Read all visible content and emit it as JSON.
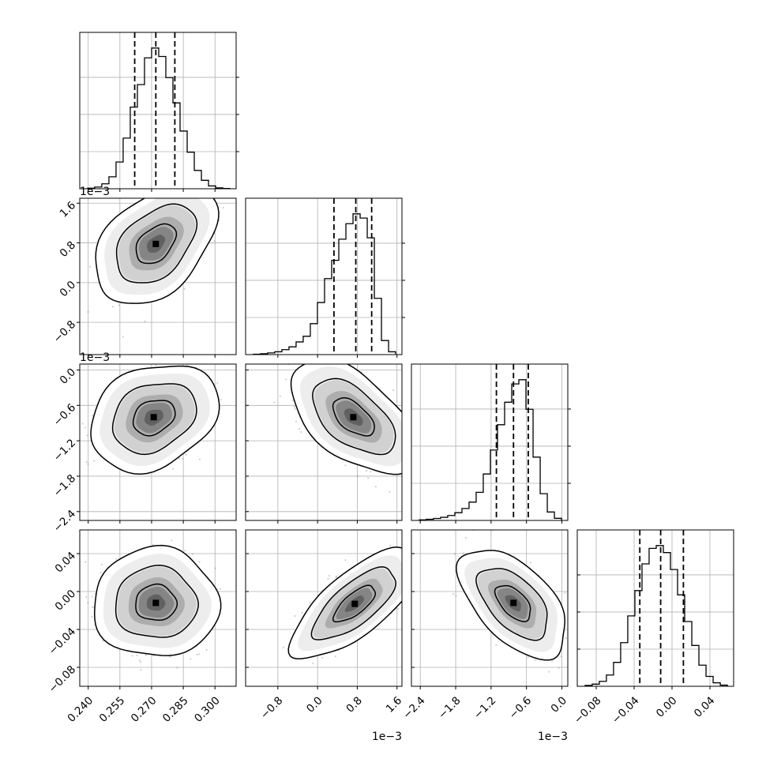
{
  "chart_data": {
    "type": "corner",
    "grid": true,
    "n_params": 4,
    "params": [
      {
        "range": [
          0.236,
          0.31
        ],
        "ticks": [
          0.24,
          0.255,
          0.27,
          0.285,
          0.3
        ],
        "tick_labels": [
          "0.240",
          "0.255",
          "0.270",
          "0.285",
          "0.300"
        ],
        "offset_label": "",
        "quantiles": [
          0.262,
          0.272,
          0.281
        ],
        "hist": [
          0.004,
          0.012,
          0.035,
          0.085,
          0.19,
          0.36,
          0.58,
          0.74,
          0.93,
          1.0,
          0.94,
          0.79,
          0.61,
          0.41,
          0.26,
          0.13,
          0.06,
          0.02,
          0.006,
          0.002
        ]
      },
      {
        "range": [
          -1.45,
          1.7
        ],
        "ticks": [
          -0.8,
          0.0,
          0.8,
          1.6
        ],
        "tick_labels": [
          "−0.8",
          "0.0",
          "0.8",
          "1.6"
        ],
        "offset_label": "1e−3",
        "quantiles": [
          0.33,
          0.77,
          1.09
        ],
        "hist": [
          0.003,
          0.006,
          0.012,
          0.02,
          0.035,
          0.055,
          0.09,
          0.13,
          0.22,
          0.37,
          0.54,
          0.67,
          0.82,
          0.93,
          1.0,
          0.97,
          0.83,
          0.4,
          0.1,
          0.02
        ]
      },
      {
        "range": [
          -2.55,
          0.1
        ],
        "ticks": [
          -2.4,
          -1.8,
          -1.2,
          -0.6,
          0.0
        ],
        "tick_labels": [
          "−2.4",
          "−1.8",
          "−1.2",
          "−0.6",
          "0.0"
        ],
        "offset_label": "1e−3",
        "quantiles": [
          -1.11,
          -0.82,
          -0.57
        ],
        "hist": [
          0.004,
          0.008,
          0.014,
          0.022,
          0.035,
          0.055,
          0.085,
          0.13,
          0.2,
          0.33,
          0.5,
          0.68,
          0.84,
          0.97,
          1.0,
          0.79,
          0.45,
          0.19,
          0.06,
          0.015
        ]
      },
      {
        "range": [
          -0.1,
          0.065
        ],
        "ticks": [
          -0.08,
          -0.04,
          0.0,
          0.04
        ],
        "tick_labels": [
          "−0.08",
          "−0.04",
          "0.00",
          "0.04"
        ],
        "offset_label": "",
        "quantiles": [
          -0.034,
          -0.012,
          0.012
        ],
        "hist": [
          0.006,
          0.015,
          0.035,
          0.08,
          0.17,
          0.31,
          0.5,
          0.68,
          0.87,
          0.98,
          1.0,
          0.95,
          0.83,
          0.65,
          0.46,
          0.29,
          0.15,
          0.07,
          0.025,
          0.008
        ]
      }
    ],
    "pairs": [
      {
        "x": 0,
        "y": 1,
        "mean": [
          0.272,
          0.78
        ],
        "sd": [
          0.0095,
          0.4
        ],
        "rho": 0.42
      },
      {
        "x": 0,
        "y": 2,
        "mean": [
          0.271,
          -0.8
        ],
        "sd": [
          0.01,
          0.3
        ],
        "rho": 0.25
      },
      {
        "x": 1,
        "y": 2,
        "mean": [
          0.72,
          -0.8
        ],
        "sd": [
          0.42,
          0.32
        ],
        "rho": -0.55
      },
      {
        "x": 0,
        "y": 3,
        "mean": [
          0.272,
          -0.012
        ],
        "sd": [
          0.0098,
          0.019
        ],
        "rho": 0.0
      },
      {
        "x": 1,
        "y": 3,
        "mean": [
          0.75,
          -0.013
        ],
        "sd": [
          0.42,
          0.019
        ],
        "rho": 0.72
      },
      {
        "x": 2,
        "y": 3,
        "mean": [
          -0.82,
          -0.012
        ],
        "sd": [
          0.3,
          0.019
        ],
        "rho": -0.55
      }
    ],
    "contour_levels": [
      0.39,
      0.86,
      0.99
    ],
    "colors": {
      "hist": "#000000",
      "quantile": "#000000",
      "contour": "#000000",
      "points": "#777777",
      "grid": "#b0b0b0",
      "fill": "#000000"
    }
  }
}
